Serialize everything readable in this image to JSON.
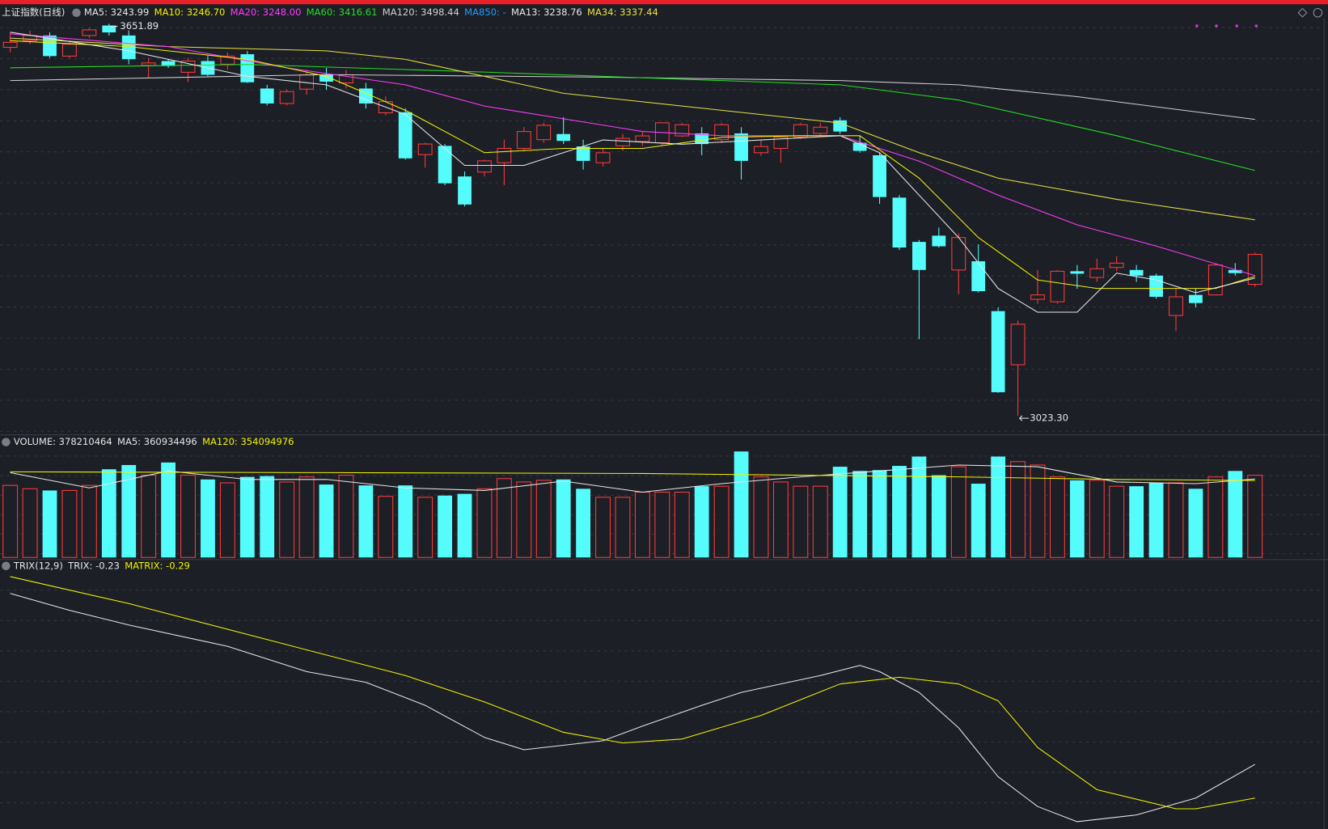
{
  "chart_data": [
    {
      "type": "candlestick",
      "title": "上证指数(日线)",
      "legend": [
        {
          "label": "MA5: 3243.99",
          "color": "#e6e6e6"
        },
        {
          "label": "MA10: 3246.70",
          "color": "#f2f200"
        },
        {
          "label": "MA20: 3248.00",
          "color": "#ff3cff"
        },
        {
          "label": "MA60: 3416.61",
          "color": "#22e022"
        },
        {
          "label": "MA120: 3498.44",
          "color": "#cfcfcf"
        },
        {
          "label": "MA850: -",
          "color": "#1f9bff"
        },
        {
          "label": "MA13: 3238.76",
          "color": "#e6e6e6"
        },
        {
          "label": "MA34: 3337.44",
          "color": "#e8e040"
        }
      ],
      "high_label": "3651.89",
      "low_label": "3023.30",
      "up_color": "#ff3b3b",
      "down_color": "#54fcfc",
      "xlim": [
        0,
        63
      ],
      "ylim": [
        2996,
        3660
      ],
      "open": [
        3614,
        3625,
        3633,
        3600,
        3633,
        3649,
        3633,
        3585,
        3592,
        3574,
        3592,
        3587,
        3603,
        3548,
        3524,
        3547,
        3570,
        3557,
        3548,
        3509,
        3510,
        3442,
        3456,
        3407,
        3414,
        3429,
        3452,
        3466,
        3475,
        3455,
        3429,
        3456,
        3463,
        3461,
        3472,
        3476,
        3466,
        3476,
        3445,
        3452,
        3470,
        3476,
        3497,
        3461,
        3441,
        3373,
        3302,
        3312,
        3257,
        3271,
        3191,
        3105,
        3210,
        3206,
        3255,
        3245,
        3261,
        3257,
        3248,
        3184,
        3217,
        3217,
        3257,
        3234
      ],
      "high": [
        3638,
        3641,
        3638,
        3625,
        3645,
        3651.89,
        3641,
        3597,
        3595,
        3597,
        3600,
        3606,
        3608,
        3554,
        3546,
        3578,
        3581,
        3578,
        3557,
        3535,
        3516,
        3461,
        3459,
        3415,
        3434,
        3466,
        3486,
        3493,
        3502,
        3466,
        3452,
        3475,
        3479,
        3493,
        3493,
        3486,
        3493,
        3486,
        3466,
        3472,
        3493,
        3493,
        3502,
        3472,
        3445,
        3377,
        3305,
        3325,
        3316,
        3298,
        3197,
        3176,
        3257,
        3257,
        3265,
        3275,
        3279,
        3265,
        3251,
        3227,
        3227,
        3268,
        3268,
        3285
      ],
      "low": [
        3606,
        3619,
        3597,
        3597,
        3629,
        3633,
        3587,
        3565,
        3581,
        3558,
        3568,
        3578,
        3557,
        3521,
        3521,
        3538,
        3546,
        3548,
        3516,
        3505,
        3434,
        3421,
        3393,
        3359,
        3407,
        3393,
        3448,
        3461,
        3459,
        3418,
        3423,
        3448,
        3456,
        3456,
        3470,
        3441,
        3461,
        3402,
        3440,
        3429,
        3467,
        3472,
        3475,
        3445,
        3363,
        3289,
        3146,
        3293,
        3218,
        3221,
        3060,
        3023.3,
        3203,
        3203,
        3227,
        3238,
        3255,
        3238,
        3211,
        3159,
        3197,
        3217,
        3248,
        3230
      ],
      "close": [
        3622,
        3633,
        3600,
        3619,
        3642,
        3638,
        3595,
        3589,
        3584,
        3592,
        3570,
        3600,
        3558,
        3524,
        3543,
        3570,
        3559,
        3570,
        3524,
        3527,
        3436,
        3459,
        3396,
        3362,
        3432,
        3452,
        3479,
        3489,
        3464,
        3432,
        3445,
        3468,
        3472,
        3493,
        3490,
        3459,
        3490,
        3432,
        3455,
        3470,
        3490,
        3486,
        3479,
        3448,
        3374,
        3293,
        3257,
        3295,
        3309,
        3223,
        3061,
        3170,
        3217,
        3255,
        3251,
        3259,
        3268,
        3248,
        3214,
        3214,
        3204,
        3265,
        3252,
        3282
      ],
      "series": [
        {
          "name": "MA120",
          "color": "#cfcfcf",
          "x": [
            0,
            16,
            30,
            42,
            48,
            54,
            63
          ],
          "values": [
            3560.7,
            3570.3,
            3566.2,
            3560.7,
            3553.9,
            3534.9,
            3498.44
          ]
        },
        {
          "name": "MA60",
          "color": "#22e022",
          "x": [
            0,
            12,
            24,
            36,
            42,
            48,
            56,
            63
          ],
          "values": [
            3581.2,
            3586.6,
            3574.3,
            3560.7,
            3553.9,
            3529.5,
            3472.3,
            3416.61
          ]
        },
        {
          "name": "MA34",
          "color": "#e8e040",
          "x": [
            0,
            8,
            16,
            20,
            28,
            36,
            42,
            46,
            50,
            56,
            63
          ],
          "values": [
            3628.8,
            3615.2,
            3608.4,
            3594.8,
            3540.3,
            3513.1,
            3492.7,
            3445.1,
            3404.3,
            3370.3,
            3337.44
          ]
        },
        {
          "name": "MA20",
          "color": "#ff3cff",
          "x": [
            0,
            8,
            14,
            20,
            24,
            28,
            32,
            36,
            42,
            46,
            50,
            54,
            58,
            63
          ],
          "values": [
            3635.6,
            3615.2,
            3581.2,
            3553.9,
            3519.9,
            3499.5,
            3479.1,
            3472.3,
            3472.3,
            3431.5,
            3377.1,
            3329.4,
            3295.4,
            3248.0
          ]
        },
        {
          "name": "MA10",
          "color": "#f2f200",
          "x": [
            0,
            6,
            12,
            16,
            20,
            24,
            28,
            32,
            36,
            40,
            43,
            46,
            49,
            52,
            55,
            58,
            61,
            63
          ],
          "values": [
            3624.7,
            3615.2,
            3594.8,
            3567.5,
            3513.1,
            3445.1,
            3451.9,
            3451.9,
            3469.6,
            3472.3,
            3472.3,
            3404.3,
            3309.0,
            3241.0,
            3227.4,
            3227.4,
            3227.4,
            3246.7
          ]
        },
        {
          "name": "MA5",
          "color": "#e6e6e6",
          "x": [
            0,
            6,
            12,
            16,
            20,
            23,
            26,
            30,
            34,
            38,
            42,
            44,
            46,
            48,
            50,
            52,
            54,
            56,
            58,
            60,
            63
          ],
          "values": [
            3638.3,
            3608.4,
            3567.5,
            3553.9,
            3506.3,
            3424.7,
            3424.7,
            3465.5,
            3458.7,
            3465.5,
            3472.3,
            3445.1,
            3377.1,
            3309.0,
            3227.4,
            3189.3,
            3189.3,
            3251.9,
            3241.0,
            3220.6,
            3243.99
          ]
        }
      ]
    },
    {
      "type": "bar",
      "legend": [
        {
          "label": "VOLUME: 378210464",
          "color": "#e6e6e6"
        },
        {
          "label": "MA5: 360934496",
          "color": "#e6e6e6"
        },
        {
          "label": "MA120: 354094976",
          "color": "#f2f200"
        }
      ],
      "xlim": [
        0,
        63
      ],
      "ylim": [
        0,
        554000000
      ],
      "values": [
        331500000,
        315900000,
        308100000,
        308100000,
        331500000,
        405600000,
        425100000,
        378300000,
        436800000,
        378300000,
        358800000,
        343200000,
        370500000,
        374400000,
        347100000,
        370500000,
        335400000,
        378300000,
        331500000,
        280800000,
        331500000,
        276900000,
        284700000,
        292500000,
        315900000,
        362700000,
        347100000,
        354900000,
        358800000,
        315900000,
        276900000,
        276900000,
        300300000,
        300300000,
        300300000,
        327600000,
        327600000,
        487500000,
        370500000,
        347100000,
        327600000,
        327600000,
        417300000,
        397800000,
        401700000,
        421200000,
        464100000,
        378300000,
        417300000,
        339300000,
        464100000,
        440700000,
        425100000,
        370500000,
        354900000,
        354900000,
        327600000,
        327600000,
        343200000,
        343200000,
        315900000,
        370500000,
        397800000,
        378210464
      ],
      "series": [
        {
          "name": "MA5",
          "color": "#e6e6e6",
          "x": [
            0,
            4,
            8,
            12,
            16,
            20,
            24,
            28,
            32,
            36,
            40,
            44,
            48,
            52,
            56,
            60,
            63
          ],
          "values": [
            390000000,
            319800000,
            397800000,
            358800000,
            358800000,
            319800000,
            308100000,
            351000000,
            300300000,
            339300000,
            370500000,
            397800000,
            425100000,
            417300000,
            347100000,
            339300000,
            360934496
          ]
        },
        {
          "name": "MA120",
          "color": "#f2f200",
          "x": [
            0,
            16,
            32,
            40,
            48,
            56,
            63
          ],
          "values": [
            393900000,
            390000000,
            386100000,
            378300000,
            370500000,
            358800000,
            354094976
          ]
        }
      ]
    },
    {
      "type": "line",
      "title": "TRIX(12,9)",
      "legend": [
        {
          "label": "TRIX: -0.23",
          "color": "#e6e6e6"
        },
        {
          "label": "MATRIX: -0.29",
          "color": "#f2f200"
        }
      ],
      "xlim": [
        0,
        63
      ],
      "ylim": [
        -0.342,
        0.1305
      ],
      "series": [
        {
          "name": "TRIX",
          "color": "#e6e6e6",
          "x": [
            0,
            3,
            6,
            11,
            15,
            18,
            21,
            24,
            26,
            30,
            32,
            35,
            37,
            41,
            43,
            44,
            46,
            48,
            50,
            52,
            54,
            57,
            60,
            63
          ],
          "values": [
            0.074,
            0.044,
            0.018,
            -0.02,
            -0.065,
            -0.084,
            -0.125,
            -0.182,
            -0.204,
            -0.188,
            -0.162,
            -0.125,
            -0.102,
            -0.072,
            -0.054,
            -0.065,
            -0.102,
            -0.165,
            -0.252,
            -0.305,
            -0.332,
            -0.32,
            -0.29,
            -0.23
          ]
        },
        {
          "name": "MATRIX",
          "color": "#f2f200",
          "x": [
            0,
            6,
            13,
            20,
            24,
            28,
            31,
            34,
            38,
            42,
            45,
            48,
            50,
            52,
            55,
            59,
            60,
            63
          ],
          "values": [
            0.104,
            0.056,
            -0.008,
            -0.072,
            -0.119,
            -0.173,
            -0.192,
            -0.185,
            -0.143,
            -0.087,
            -0.075,
            -0.087,
            -0.117,
            -0.2,
            -0.275,
            -0.309,
            -0.309,
            -0.29
          ]
        }
      ]
    }
  ]
}
